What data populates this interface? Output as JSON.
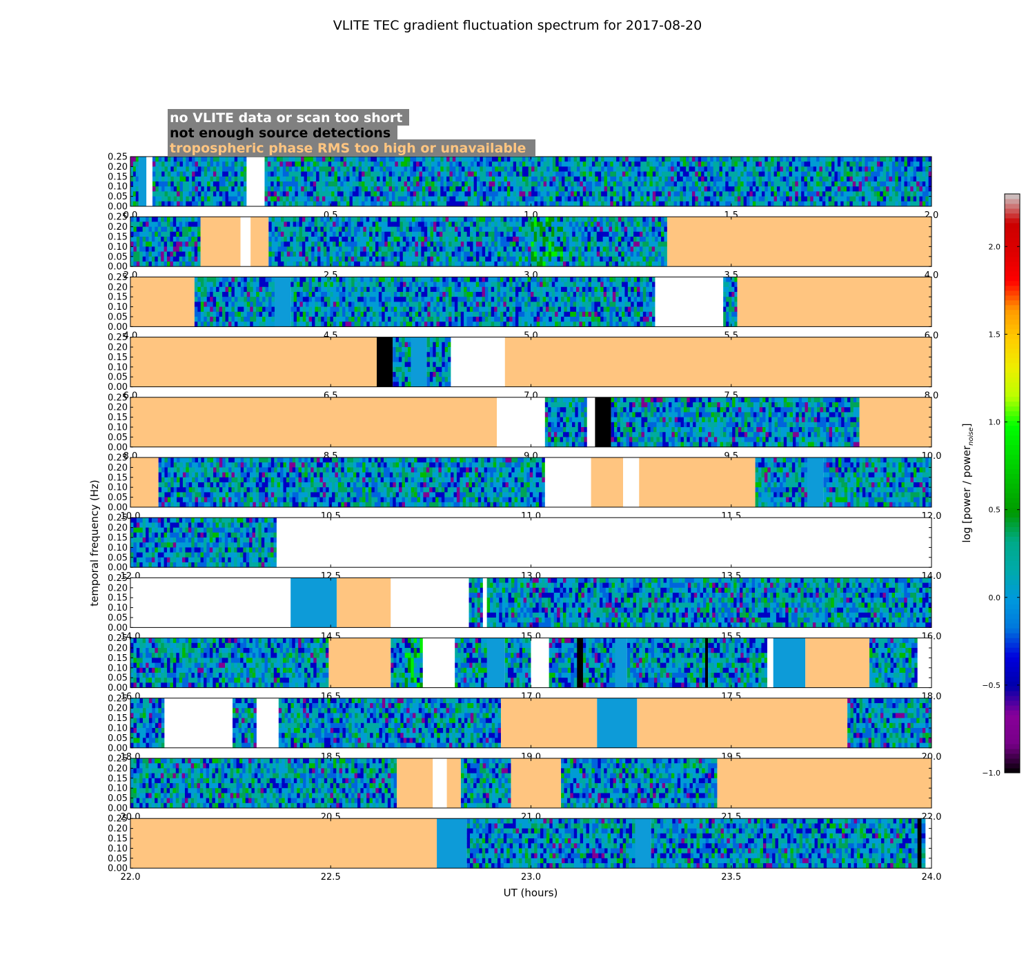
{
  "chart_data": {
    "type": "heatmap",
    "title": "VLITE TEC gradient fluctuation spectrum for 2017-08-20",
    "xlabel": "UT (hours)",
    "ylabel": "temporal frequency (Hz)",
    "colorbar": {
      "label_main": "log [power / power",
      "label_sub": "noise",
      "label_end": "]",
      "ticks": [
        -1.0,
        -0.5,
        0.0,
        0.5,
        1.0,
        1.5,
        2.0
      ],
      "tick_labels": [
        "−1.0",
        "−0.5",
        "0.0",
        "0.5",
        "1.0",
        "1.5",
        "2.0"
      ],
      "range": [
        -1.0,
        2.3
      ],
      "colormap": "nipy_spectral"
    },
    "yticks": [
      0.0,
      0.05,
      0.1,
      0.15,
      0.2,
      0.25
    ],
    "ytick_labels": [
      "0.00",
      "0.05",
      "0.10",
      "0.15",
      "0.20",
      "0.25"
    ],
    "ylim": [
      0,
      0.25
    ],
    "legend": {
      "placement": "top-left",
      "entries": [
        {
          "label": "no VLITE data or scan too short",
          "color": "#ffffff"
        },
        {
          "label": "not enough source detections",
          "color": "#000000"
        },
        {
          "label": "tropospheric phase RMS too high or unavailable",
          "color": "#ffc580"
        }
      ]
    },
    "panels": [
      {
        "xlim": [
          0.0,
          2.0
        ],
        "xtick_labels": [
          "0.0",
          "0.5",
          "1.0",
          "1.5",
          "2.0"
        ],
        "intervals": [
          [
            0.0,
            0.02,
            "data"
          ],
          [
            0.02,
            0.04,
            "data_flat"
          ],
          [
            0.04,
            0.055,
            "nodata"
          ],
          [
            0.055,
            0.29,
            "data"
          ],
          [
            0.29,
            0.335,
            "nodata"
          ],
          [
            0.335,
            2.0,
            "data"
          ]
        ]
      },
      {
        "xlim": [
          2.0,
          4.0
        ],
        "xtick_labels": [
          "2.0",
          "2.5",
          "3.0",
          "3.5",
          "4.0"
        ],
        "intervals": [
          [
            2.0,
            2.175,
            "data"
          ],
          [
            2.175,
            2.275,
            "tropo"
          ],
          [
            2.275,
            2.3,
            "nodata"
          ],
          [
            2.3,
            2.345,
            "tropo"
          ],
          [
            2.345,
            3.0,
            "data"
          ],
          [
            3.0,
            3.08,
            "data_hot"
          ],
          [
            3.08,
            3.34,
            "data"
          ],
          [
            3.34,
            4.0,
            "tropo"
          ]
        ]
      },
      {
        "xlim": [
          4.0,
          6.0
        ],
        "xtick_labels": [
          "4.0",
          "4.5",
          "5.0",
          "5.5",
          "6.0"
        ],
        "intervals": [
          [
            4.0,
            4.16,
            "tropo"
          ],
          [
            4.16,
            4.36,
            "data"
          ],
          [
            4.36,
            4.4,
            "data_flat"
          ],
          [
            4.4,
            5.31,
            "data"
          ],
          [
            5.31,
            5.48,
            "nodata"
          ],
          [
            5.48,
            5.515,
            "data"
          ],
          [
            5.515,
            6.0,
            "tropo"
          ]
        ]
      },
      {
        "xlim": [
          6.0,
          8.0
        ],
        "xtick_labels": [
          "6.0",
          "6.5",
          "7.0",
          "7.5",
          "8.0"
        ],
        "intervals": [
          [
            6.0,
            6.615,
            "tropo"
          ],
          [
            6.615,
            6.655,
            "nodets"
          ],
          [
            6.655,
            6.7,
            "data"
          ],
          [
            6.7,
            6.74,
            "data_flat"
          ],
          [
            6.74,
            6.8,
            "data"
          ],
          [
            6.8,
            6.935,
            "nodata"
          ],
          [
            6.935,
            8.0,
            "tropo"
          ]
        ]
      },
      {
        "xlim": [
          8.0,
          10.0
        ],
        "xtick_labels": [
          "8.0",
          "8.5",
          "9.0",
          "9.5",
          "10.0"
        ],
        "intervals": [
          [
            8.0,
            8.915,
            "tropo"
          ],
          [
            8.915,
            9.035,
            "nodata"
          ],
          [
            9.035,
            9.14,
            "data"
          ],
          [
            9.14,
            9.16,
            "nodata"
          ],
          [
            9.16,
            9.2,
            "nodets"
          ],
          [
            9.2,
            9.82,
            "data"
          ],
          [
            9.82,
            10.0,
            "tropo"
          ]
        ]
      },
      {
        "xlim": [
          10.0,
          12.0
        ],
        "xtick_labels": [
          "10.0",
          "10.5",
          "11.0",
          "11.5",
          "12.0"
        ],
        "intervals": [
          [
            10.0,
            10.07,
            "tropo"
          ],
          [
            10.07,
            11.035,
            "data"
          ],
          [
            11.035,
            11.15,
            "nodata"
          ],
          [
            11.15,
            11.23,
            "tropo"
          ],
          [
            11.23,
            11.27,
            "nodata"
          ],
          [
            11.27,
            11.56,
            "tropo"
          ],
          [
            11.56,
            11.69,
            "data"
          ],
          [
            11.69,
            11.73,
            "data_flat"
          ],
          [
            11.73,
            12.0,
            "data"
          ]
        ]
      },
      {
        "xlim": [
          12.0,
          14.0
        ],
        "xtick_labels": [
          "12.0",
          "12.5",
          "13.0",
          "13.5",
          "14.0"
        ],
        "intervals": [
          [
            12.0,
            12.365,
            "data"
          ],
          [
            12.365,
            14.0,
            "nodata"
          ]
        ]
      },
      {
        "xlim": [
          14.0,
          16.0
        ],
        "xtick_labels": [
          "14.0",
          "14.5",
          "15.0",
          "15.5",
          "16.0"
        ],
        "intervals": [
          [
            14.0,
            14.4,
            "nodata"
          ],
          [
            14.4,
            14.515,
            "data_flat"
          ],
          [
            14.515,
            14.65,
            "tropo"
          ],
          [
            14.65,
            14.845,
            "nodata"
          ],
          [
            14.845,
            14.88,
            "data"
          ],
          [
            14.88,
            14.89,
            "nodata"
          ],
          [
            14.89,
            16.0,
            "data"
          ]
        ]
      },
      {
        "xlim": [
          16.0,
          18.0
        ],
        "xtick_labels": [
          "16.0",
          "16.5",
          "17.0",
          "17.5",
          "18.0"
        ],
        "intervals": [
          [
            16.0,
            16.495,
            "data"
          ],
          [
            16.495,
            16.65,
            "tropo"
          ],
          [
            16.65,
            16.685,
            "data"
          ],
          [
            16.685,
            16.73,
            "data_hot"
          ],
          [
            16.73,
            16.81,
            "nodata"
          ],
          [
            16.81,
            16.89,
            "data"
          ],
          [
            16.89,
            16.935,
            "data_flat"
          ],
          [
            16.935,
            17.0,
            "data"
          ],
          [
            17.0,
            17.045,
            "nodata"
          ],
          [
            17.045,
            17.115,
            "data"
          ],
          [
            17.115,
            17.13,
            "nodets"
          ],
          [
            17.13,
            17.21,
            "data"
          ],
          [
            17.21,
            17.24,
            "data_flat"
          ],
          [
            17.24,
            17.435,
            "data"
          ],
          [
            17.435,
            17.442,
            "nodets"
          ],
          [
            17.442,
            17.59,
            "data"
          ],
          [
            17.59,
            17.605,
            "nodata"
          ],
          [
            17.605,
            17.685,
            "data_flat"
          ],
          [
            17.685,
            17.845,
            "tropo"
          ],
          [
            17.845,
            17.965,
            "data"
          ],
          [
            17.965,
            18.0,
            "nodata"
          ]
        ]
      },
      {
        "xlim": [
          18.0,
          20.0
        ],
        "xtick_labels": [
          "18.0",
          "18.5",
          "19.0",
          "19.5",
          "20.0"
        ],
        "intervals": [
          [
            18.0,
            18.085,
            "data"
          ],
          [
            18.085,
            18.255,
            "nodata"
          ],
          [
            18.255,
            18.315,
            "data"
          ],
          [
            18.315,
            18.37,
            "nodata"
          ],
          [
            18.37,
            18.925,
            "data"
          ],
          [
            18.925,
            19.165,
            "tropo"
          ],
          [
            19.165,
            19.265,
            "data_flat"
          ],
          [
            19.265,
            19.79,
            "tropo"
          ],
          [
            19.79,
            20.0,
            "data"
          ]
        ]
      },
      {
        "xlim": [
          20.0,
          22.0
        ],
        "xtick_labels": [
          "20.0",
          "20.5",
          "21.0",
          "21.5",
          "22.0"
        ],
        "intervals": [
          [
            20.0,
            20.665,
            "data"
          ],
          [
            20.665,
            20.755,
            "tropo"
          ],
          [
            20.755,
            20.79,
            "nodata"
          ],
          [
            20.79,
            20.825,
            "tropo"
          ],
          [
            20.825,
            20.95,
            "data"
          ],
          [
            20.95,
            21.075,
            "tropo"
          ],
          [
            21.075,
            21.465,
            "data"
          ],
          [
            21.465,
            22.0,
            "tropo"
          ]
        ]
      },
      {
        "xlim": [
          22.0,
          24.0
        ],
        "xtick_labels": [
          "22.0",
          "22.5",
          "23.0",
          "23.5",
          "24.0"
        ],
        "intervals": [
          [
            22.0,
            22.765,
            "tropo"
          ],
          [
            22.765,
            22.84,
            "data_flat"
          ],
          [
            22.84,
            23.26,
            "data"
          ],
          [
            23.26,
            23.3,
            "data_flat"
          ],
          [
            23.3,
            23.965,
            "data"
          ],
          [
            23.965,
            23.975,
            "nodets"
          ],
          [
            23.975,
            23.985,
            "data"
          ],
          [
            23.985,
            24.0,
            "nodata"
          ]
        ]
      }
    ]
  },
  "colors": {
    "nodata": "#ffffff",
    "nodets": "#000000",
    "tropo": "#ffc580",
    "data_flat": "#0d9bd8",
    "legend_box": "#808080",
    "legend_text_white": "#ffffff",
    "legend_text_black": "#000000",
    "legend_text_tropo": "#ffc580"
  }
}
